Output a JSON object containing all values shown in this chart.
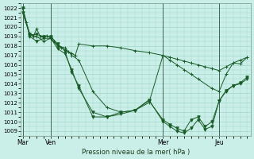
{
  "bg_color": "#caeee8",
  "grid_color": "#a0d8cc",
  "line_color": "#1a5c28",
  "ylabel_text": "Pression niveau de la mer( hPa )",
  "ylim": [
    1008.5,
    1022.5
  ],
  "yticks": [
    1009,
    1010,
    1011,
    1012,
    1013,
    1014,
    1015,
    1016,
    1017,
    1018,
    1019,
    1020,
    1021,
    1022
  ],
  "xtick_labels": [
    "Mar",
    "Ven",
    "Mer",
    "Jeu"
  ],
  "xtick_positions": [
    0,
    16,
    80,
    112
  ],
  "vline_positions": [
    0,
    16,
    80,
    112
  ],
  "xlim": [
    -1,
    130
  ],
  "series": [
    {
      "x": [
        0,
        2,
        4,
        6,
        8,
        10,
        12,
        14,
        16,
        18,
        20,
        22,
        24,
        26,
        28,
        30,
        32,
        40,
        48,
        56,
        64,
        72,
        80,
        84,
        88,
        92,
        96,
        100,
        104,
        108,
        112,
        116,
        120,
        124,
        128
      ],
      "y": [
        1022,
        1020.5,
        1019.3,
        1019.0,
        1019.8,
        1019.0,
        1019.0,
        1019.1,
        1018.8,
        1018.5,
        1018.1,
        1017.8,
        1017.6,
        1017.4,
        1017.2,
        1017.0,
        1018.2,
        1018.0,
        1018.0,
        1017.8,
        1017.5,
        1017.3,
        1017.0,
        1016.8,
        1016.6,
        1016.4,
        1016.2,
        1016.0,
        1015.8,
        1015.6,
        1015.4,
        1015.8,
        1016.2,
        1016.1,
        1016.8
      ],
      "marker": "+"
    },
    {
      "x": [
        0,
        4,
        8,
        12,
        16,
        20,
        24,
        28,
        32,
        40,
        48,
        56,
        64,
        72,
        80,
        84,
        88,
        92,
        96,
        100,
        108,
        112,
        116,
        120,
        124,
        128
      ],
      "y": [
        1022,
        1019.2,
        1019.0,
        1018.5,
        1018.8,
        1018.0,
        1017.8,
        1017.0,
        1016.5,
        1013.2,
        1011.5,
        1011.0,
        1011.2,
        1012.0,
        1017.0,
        1016.5,
        1016.0,
        1015.5,
        1015.0,
        1014.5,
        1013.5,
        1013.2,
        1015.0,
        1016.2,
        1016.5,
        1016.8
      ],
      "marker": "+"
    },
    {
      "x": [
        0,
        4,
        8,
        12,
        16,
        20,
        24,
        28,
        32,
        40,
        48,
        56,
        64,
        72,
        80,
        84,
        88,
        92,
        96,
        100,
        104,
        108,
        112,
        116,
        120,
        124,
        128
      ],
      "y": [
        1022,
        1019.0,
        1018.5,
        1018.8,
        1018.8,
        1017.7,
        1017.2,
        1015.5,
        1013.5,
        1011.0,
        1010.5,
        1011.0,
        1011.2,
        1012.2,
        1010.2,
        1009.7,
        1009.3,
        1009.0,
        1010.2,
        1010.5,
        1009.5,
        1010.0,
        1012.2,
        1013.2,
        1013.8,
        1014.0,
        1014.5
      ],
      "marker": "v"
    },
    {
      "x": [
        0,
        4,
        8,
        12,
        16,
        20,
        24,
        28,
        32,
        40,
        48,
        56,
        64,
        72,
        80,
        84,
        88,
        92,
        96,
        100,
        104,
        108,
        112,
        116,
        120,
        124,
        128
      ],
      "y": [
        1021.5,
        1019.2,
        1019.2,
        1019.0,
        1019.0,
        1018.2,
        1017.5,
        1015.2,
        1013.8,
        1010.5,
        1010.5,
        1010.8,
        1011.2,
        1012.3,
        1010.0,
        1009.5,
        1009.0,
        1008.8,
        1009.3,
        1010.2,
        1009.2,
        1009.5,
        1012.2,
        1013.3,
        1013.8,
        1014.1,
        1014.7
      ],
      "marker": "v"
    }
  ]
}
